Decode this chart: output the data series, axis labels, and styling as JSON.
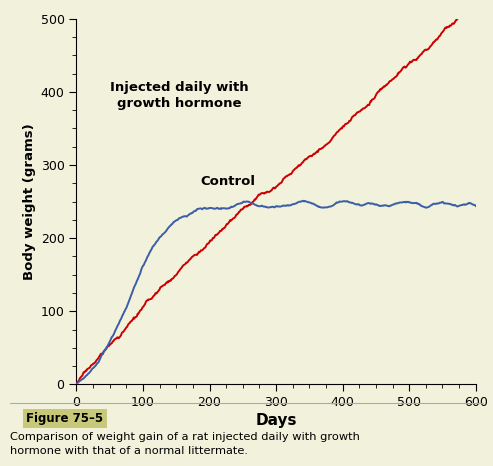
{
  "xlabel": "Days",
  "ylabel": "Body weight (grams)",
  "xlim": [
    0,
    600
  ],
  "ylim": [
    0,
    500
  ],
  "xticks": [
    0,
    100,
    200,
    300,
    400,
    500,
    600
  ],
  "yticks": [
    0,
    100,
    200,
    300,
    400,
    500
  ],
  "red_label": "Injected daily with\ngrowth hormone",
  "blue_label": "Control",
  "red_color": "#cc0000",
  "blue_color": "#3b5ea6",
  "background_color": "#f2f2dc",
  "figure_caption": "Figure 75–5",
  "caption_text": "Comparison of weight gain of a rat injected daily with growth\nhormone with that of a normal littermate.",
  "linewidth": 1.4
}
